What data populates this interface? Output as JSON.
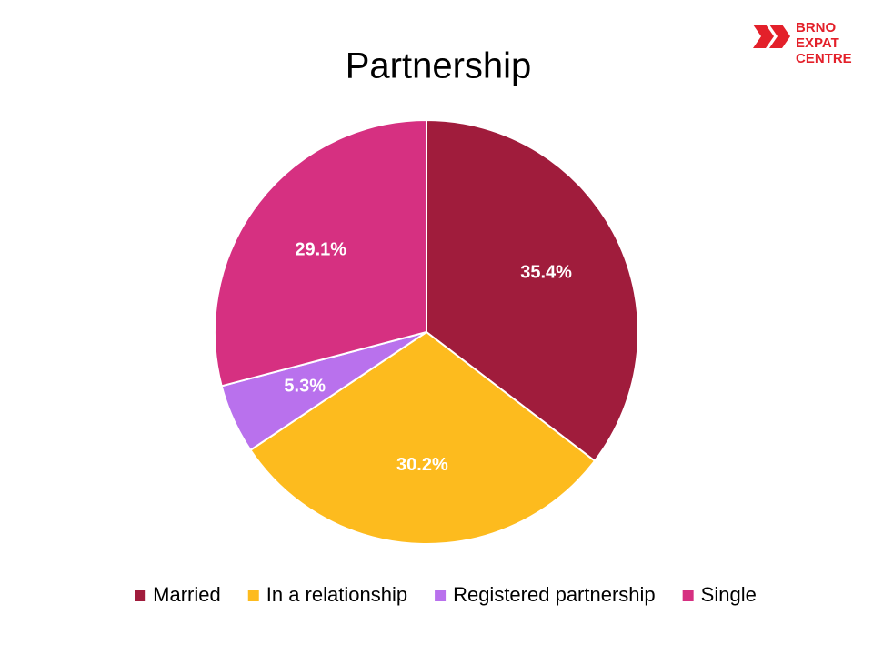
{
  "chart_data": {
    "type": "pie",
    "title": "Partnership",
    "categories": [
      "Married",
      "In a relationship",
      "Registered partnership",
      "Single"
    ],
    "values": [
      35.4,
      30.2,
      5.3,
      29.1
    ],
    "value_labels": [
      "35.4%",
      "30.2%",
      "5.3%",
      "29.1%"
    ],
    "colors": [
      "#A01C3C",
      "#FDBB1E",
      "#B971ED",
      "#D63081"
    ],
    "legend": "bottom"
  },
  "logo": [
    "BRNO",
    "EXPAT",
    "CENTRE"
  ]
}
